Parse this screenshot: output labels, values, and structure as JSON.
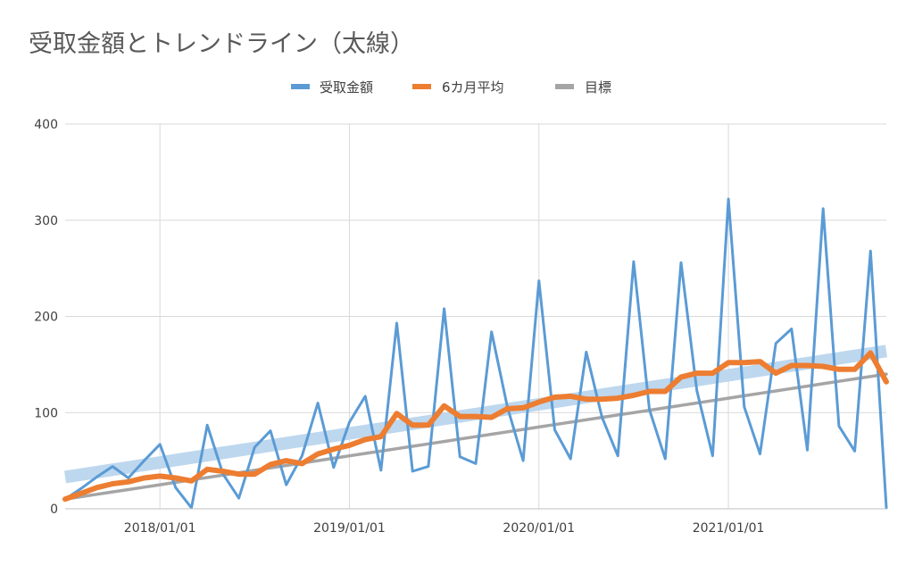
{
  "chart_data": {
    "type": "line",
    "title": "受取金額とトレンドライン（太線）",
    "legend_position": "top",
    "ylim": [
      0,
      400
    ],
    "yticks": [
      0,
      100,
      200,
      300,
      400
    ],
    "xtick_labels": [
      "2018/01/01",
      "2019/01/01",
      "2020/01/01",
      "2021/01/01"
    ],
    "xtick_months": [
      6,
      18,
      30,
      42
    ],
    "grid": true,
    "x_months": [
      0,
      1,
      2,
      3,
      4,
      5,
      6,
      7,
      8,
      9,
      10,
      11,
      12,
      13,
      14,
      15,
      16,
      17,
      18,
      19,
      20,
      21,
      22,
      23,
      24,
      25,
      26,
      27,
      28,
      29,
      30,
      31,
      32,
      33,
      34,
      35,
      36,
      37,
      38,
      39,
      40,
      41,
      42,
      43,
      44,
      45,
      46,
      47,
      48,
      49,
      50,
      51,
      52
    ],
    "series": [
      {
        "name": "受取金額",
        "color": "#5b9bd5",
        "values": [
          10,
          21,
          33,
          44,
          32,
          50,
          67,
          22,
          1,
          87,
          36,
          11,
          64,
          81,
          25,
          55,
          110,
          43,
          90,
          117,
          40,
          193,
          39,
          44,
          208,
          54,
          47,
          184,
          106,
          50,
          237,
          82,
          52,
          163,
          95,
          55,
          257,
          103,
          52,
          256,
          123,
          55,
          322,
          106,
          57,
          172,
          187,
          61,
          312,
          86,
          60,
          268,
          1
        ]
      },
      {
        "name": "6カ月平均",
        "color": "#ed7d31",
        "values": [
          10,
          16,
          22,
          26,
          28,
          32,
          34,
          32,
          29,
          41,
          39,
          36,
          36,
          46,
          50,
          47,
          57,
          62,
          66,
          72,
          75,
          99,
          87,
          87,
          107,
          96,
          96,
          95,
          104,
          105,
          111,
          116,
          117,
          114,
          114,
          115,
          118,
          122,
          122,
          137,
          141,
          141,
          152,
          152,
          153,
          141,
          149,
          149,
          148,
          145,
          145,
          162,
          132
        ]
      },
      {
        "name": "目標",
        "color": "#a5a5a5",
        "values": [
          10,
          12.5,
          15,
          17.5,
          20,
          22.5,
          25,
          27.5,
          30,
          32.5,
          35,
          37.5,
          40,
          42.5,
          45,
          47.5,
          50,
          52.5,
          55,
          57.5,
          60,
          62.5,
          65,
          67.5,
          70,
          72.5,
          75,
          77.5,
          80,
          82.5,
          85,
          87.5,
          90,
          92.5,
          95,
          97.5,
          100,
          102.5,
          105,
          107.5,
          110,
          112.5,
          115,
          117.5,
          120,
          122.5,
          125,
          127.5,
          130,
          132.5,
          135,
          137.5,
          140
        ]
      }
    ],
    "trendline": {
      "color": "#bdd7ee",
      "start_value": 33,
      "end_value": 164
    }
  }
}
